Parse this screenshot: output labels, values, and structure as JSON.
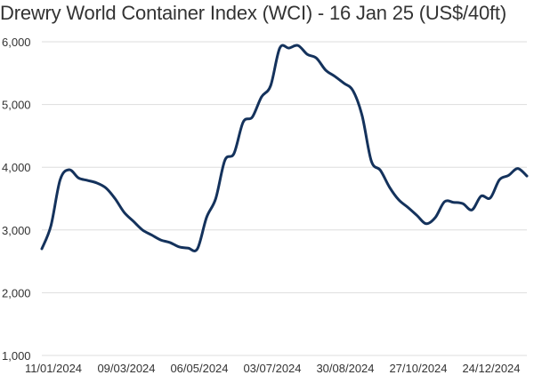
{
  "chart_data": {
    "type": "line",
    "title": "Drewry World Container Index (WCI) - 16 Jan 25 (US$/40ft)",
    "xlabel": "",
    "ylabel": "",
    "ylim": [
      1000,
      6000
    ],
    "grid": true,
    "y_ticks": [
      "1,000",
      "2,000",
      "3,000",
      "4,000",
      "5,000",
      "6,000"
    ],
    "y_tick_values": [
      1000,
      2000,
      3000,
      4000,
      5000,
      6000
    ],
    "x_ticks": [
      "11/01/2024",
      "09/03/2024",
      "06/05/2024",
      "03/07/2024",
      "30/08/2024",
      "27/10/2024",
      "24/12/2024"
    ],
    "line_color": "#14325c",
    "series": [
      {
        "x": [
          "11/01/2024",
          "18/01/2024",
          "25/01/2024",
          "01/02/2024",
          "08/02/2024",
          "15/02/2024",
          "22/02/2024",
          "29/02/2024",
          "07/03/2024",
          "14/03/2024",
          "21/03/2024",
          "28/03/2024",
          "04/04/2024",
          "11/04/2024",
          "18/04/2024",
          "25/04/2024",
          "02/05/2024",
          "09/05/2024",
          "16/05/2024",
          "23/05/2024",
          "30/05/2024",
          "06/06/2024",
          "13/06/2024",
          "20/06/2024",
          "27/06/2024",
          "04/07/2024",
          "11/07/2024",
          "18/07/2024",
          "25/07/2024",
          "01/08/2024",
          "08/08/2024",
          "15/08/2024",
          "22/08/2024",
          "29/08/2024",
          "05/09/2024",
          "12/09/2024",
          "19/09/2024",
          "26/09/2024",
          "03/10/2024",
          "10/10/2024",
          "17/10/2024",
          "24/10/2024",
          "31/10/2024",
          "07/11/2024",
          "14/11/2024",
          "21/11/2024",
          "28/11/2024",
          "05/12/2024",
          "12/12/2024",
          "19/12/2024",
          "26/12/2024",
          "02/01/2025",
          "09/01/2025",
          "16/01/2025"
        ],
        "values": [
          2700,
          3070,
          3800,
          3960,
          3830,
          3790,
          3750,
          3670,
          3500,
          3280,
          3140,
          3000,
          2920,
          2840,
          2800,
          2730,
          2710,
          2700,
          3200,
          3500,
          4110,
          4220,
          4720,
          4800,
          5120,
          5300,
          5900,
          5900,
          5940,
          5800,
          5740,
          5550,
          5450,
          5340,
          5220,
          4820,
          4100,
          3950,
          3680,
          3480,
          3360,
          3230,
          3100,
          3200,
          3450,
          3440,
          3420,
          3320,
          3540,
          3510,
          3800,
          3870,
          3980,
          3860
        ]
      }
    ]
  }
}
